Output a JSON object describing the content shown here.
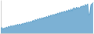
{
  "chart_data": {
    "type": "area",
    "values": [
      140,
      148,
      130,
      145,
      138,
      152,
      143,
      158,
      148,
      162,
      155,
      165,
      158,
      170,
      162,
      175,
      168,
      178,
      165,
      180,
      175,
      185,
      178,
      192,
      185,
      195,
      188,
      200,
      192,
      208,
      195,
      215,
      205,
      220,
      210,
      225,
      215,
      230,
      220,
      235,
      225,
      240,
      228,
      248,
      235,
      252,
      242,
      258,
      248,
      262,
      252,
      268,
      258,
      275,
      265,
      280,
      268,
      285,
      272,
      290,
      278,
      295,
      280,
      302,
      285,
      308,
      312,
      295,
      318,
      305,
      315,
      308,
      325,
      320,
      330,
      318,
      340,
      328,
      345,
      250,
      260,
      340,
      345,
      355
    ],
    "color": "#5B9EC9",
    "xlim": [
      0,
      83
    ],
    "ylim": [
      100,
      370
    ],
    "grid": false,
    "tick_labels": false
  }
}
